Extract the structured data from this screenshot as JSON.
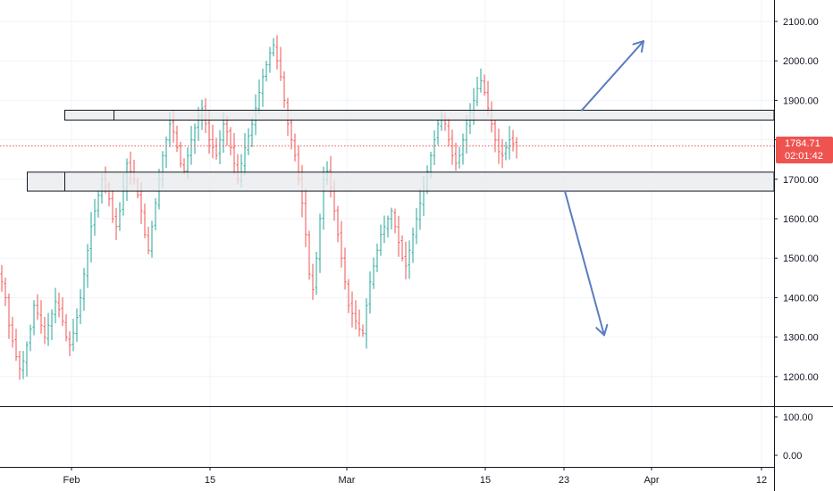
{
  "colors": {
    "up": "#26a69a",
    "down": "#ef5350",
    "grid": "#f0f3fa",
    "zone_fill": "#e8e9ec",
    "zone_stroke": "#131722",
    "arrow": "#5b7dbd",
    "last_price_line": "#ef5350",
    "axis_text": "#131722"
  },
  "price_tag": {
    "price": "1784.71",
    "countdown": "02:01:42"
  },
  "chart_data": {
    "type": "candlestick",
    "y_axis": {
      "ticks": [
        "2100.00",
        "2000.00",
        "1900.00",
        "1800.00",
        "1700.00",
        "1600.00",
        "1500.00",
        "1400.00",
        "1300.00",
        "1200.00"
      ],
      "range": [
        1160,
        2140
      ]
    },
    "indicator_axis": {
      "ticks": [
        "100.00",
        "0.00"
      ]
    },
    "x_axis": {
      "ticks": [
        "Feb",
        "15",
        "Mar",
        "15",
        "23",
        "Apr",
        "12"
      ]
    },
    "last_price": 1784.71,
    "zones": [
      {
        "low": 1850,
        "high": 1875
      },
      {
        "low": 1670,
        "high": 1718
      }
    ],
    "projections": [
      {
        "from": 1875,
        "to": 2050,
        "direction": "up"
      },
      {
        "from": 1670,
        "to": 1305,
        "direction": "down"
      }
    ],
    "series": [
      {
        "start_date": "2021-01-22",
        "interval": "4h",
        "closes": [
          1440,
          1400,
          1330,
          1290,
          1250,
          1220,
          1240,
          1280,
          1320,
          1380,
          1360,
          1330,
          1300,
          1330,
          1360,
          1390,
          1370,
          1340,
          1300,
          1280,
          1310,
          1350,
          1400,
          1460,
          1520,
          1580,
          1620,
          1660,
          1700,
          1680,
          1650,
          1600,
          1580,
          1620,
          1680,
          1740,
          1720,
          1700,
          1660,
          1620,
          1560,
          1520,
          1580,
          1640,
          1700,
          1760,
          1800,
          1840,
          1820,
          1780,
          1740,
          1720,
          1760,
          1800,
          1830,
          1860,
          1880,
          1840,
          1800,
          1780,
          1760,
          1800,
          1840,
          1820,
          1780,
          1740,
          1700,
          1740,
          1780,
          1810,
          1840,
          1880,
          1920,
          1960,
          1990,
          2020,
          2040,
          2000,
          1960,
          1900,
          1840,
          1800,
          1760,
          1700,
          1640,
          1560,
          1460,
          1420,
          1500,
          1600,
          1700,
          1720,
          1680,
          1620,
          1560,
          1500,
          1440,
          1380,
          1360,
          1340,
          1320,
          1310,
          1380,
          1440,
          1480,
          1520,
          1560,
          1580,
          1600,
          1620,
          1580,
          1540,
          1500,
          1480,
          1520,
          1560,
          1600,
          1640,
          1680,
          1720,
          1760,
          1800,
          1840,
          1860,
          1840,
          1800,
          1760,
          1740,
          1760,
          1800,
          1840,
          1870,
          1900,
          1930,
          1950,
          1920,
          1880,
          1840,
          1800,
          1770,
          1760,
          1780,
          1800,
          1790,
          1784.71
        ]
      }
    ],
    "grid": true
  }
}
